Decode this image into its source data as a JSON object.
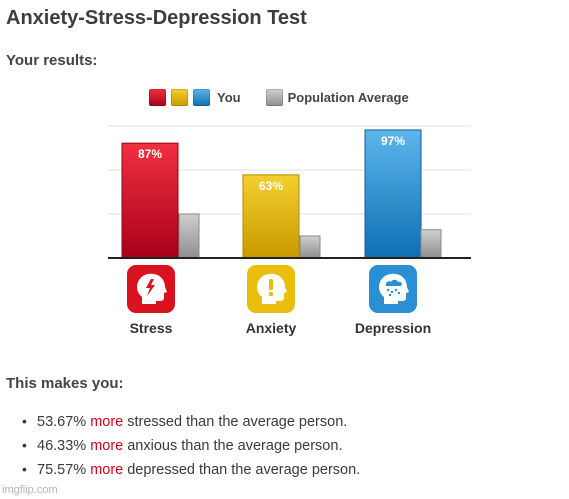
{
  "title": "Anxiety-Stress-Depression Test",
  "results_heading": "Your results:",
  "legend": {
    "you_label": "You",
    "population_label": "Population Average",
    "you_colors": [
      "#c8102e",
      "#e2b80c",
      "#1e88c8"
    ],
    "population_color": "#a8a8a8"
  },
  "chart_data": {
    "type": "bar",
    "categories": [
      "Stress",
      "Anxiety",
      "Depression"
    ],
    "series": [
      {
        "name": "You",
        "values": [
          87,
          63,
          97
        ],
        "colors": [
          "#d4142f",
          "#e0b512",
          "#2a8fd0"
        ]
      },
      {
        "name": "Population Average",
        "values": [
          33.33,
          16.67,
          21.43
        ]
      }
    ],
    "data_labels": [
      "87%",
      "63%",
      "97%"
    ],
    "ylim": [
      0,
      100
    ],
    "grid": true,
    "legend_position": "top",
    "title": "",
    "xlabel": "",
    "ylabel": ""
  },
  "icons": [
    {
      "name": "stress-head-icon",
      "color": "#d8121f"
    },
    {
      "name": "anxiety-head-icon",
      "color": "#e9be0c"
    },
    {
      "name": "depression-head-icon",
      "color": "#2a90d3"
    }
  ],
  "conclusion_heading": "This makes you:",
  "bullets": [
    {
      "percent": "53.67%",
      "more": "more",
      "rest": "stressed than the average person."
    },
    {
      "percent": "46.33%",
      "more": "more",
      "rest": "anxious than the average person."
    },
    {
      "percent": "75.57%",
      "more": "more",
      "rest": "depressed than the average person."
    }
  ],
  "bullet_symbol": "•",
  "watermark": "imgflip.com"
}
